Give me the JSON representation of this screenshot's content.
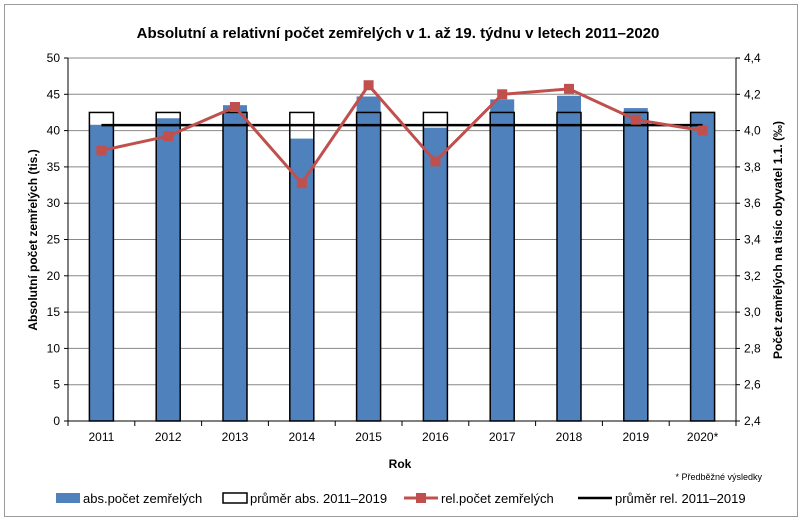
{
  "chart_data": {
    "type": "bar",
    "title": "Absolutní a relativní počet zemřelých v 1. až 19. týdnu v letech 2011–2020",
    "xlabel": "Rok",
    "ylabel_left": "Absolutní počet zemřelých (tis.)",
    "ylabel_right": "Počet zemřelých na tisíc obyvatel 1.1. (‰)",
    "categories": [
      "2011",
      "2012",
      "2013",
      "2014",
      "2015",
      "2016",
      "2017",
      "2018",
      "2019",
      "2020*"
    ],
    "ylim_left": [
      0,
      50
    ],
    "yticks_left": [
      "0",
      "5",
      "10",
      "15",
      "20",
      "25",
      "30",
      "35",
      "40",
      "45",
      "50"
    ],
    "ylim_right": [
      2.4,
      4.4
    ],
    "yticks_right": [
      "2,4",
      "2,6",
      "2,8",
      "3,0",
      "3,2",
      "3,4",
      "3,6",
      "3,8",
      "4,0",
      "4,2",
      "4,4"
    ],
    "series": [
      {
        "name": "abs.počet zemřelých",
        "axis": "left",
        "kind": "bar",
        "color": "#4f81bd",
        "values": [
          40.8,
          41.7,
          43.5,
          38.9,
          44.7,
          40.4,
          44.3,
          44.8,
          43.1,
          42.6
        ]
      },
      {
        "name": "průměr abs. 2011–2019",
        "axis": "left",
        "kind": "bar-outline",
        "color": "#000000",
        "values": [
          42.5,
          42.5,
          42.5,
          42.5,
          42.5,
          42.5,
          42.5,
          42.5,
          42.5,
          42.5
        ]
      },
      {
        "name": "rel.počet zemřelých",
        "axis": "right",
        "kind": "line-marker",
        "color": "#c0504d",
        "values": [
          3.89,
          3.97,
          4.13,
          3.71,
          4.25,
          3.83,
          4.2,
          4.23,
          4.06,
          4.0
        ]
      },
      {
        "name": "průměr rel. 2011–2019",
        "axis": "right",
        "kind": "line",
        "color": "#000000",
        "values": [
          4.03,
          4.03,
          4.03,
          4.03,
          4.03,
          4.03,
          4.03,
          4.03,
          4.03,
          4.03
        ]
      }
    ],
    "footnote": "* Předběžné výsledky",
    "grid": "horizontal",
    "legend_position": "bottom"
  }
}
